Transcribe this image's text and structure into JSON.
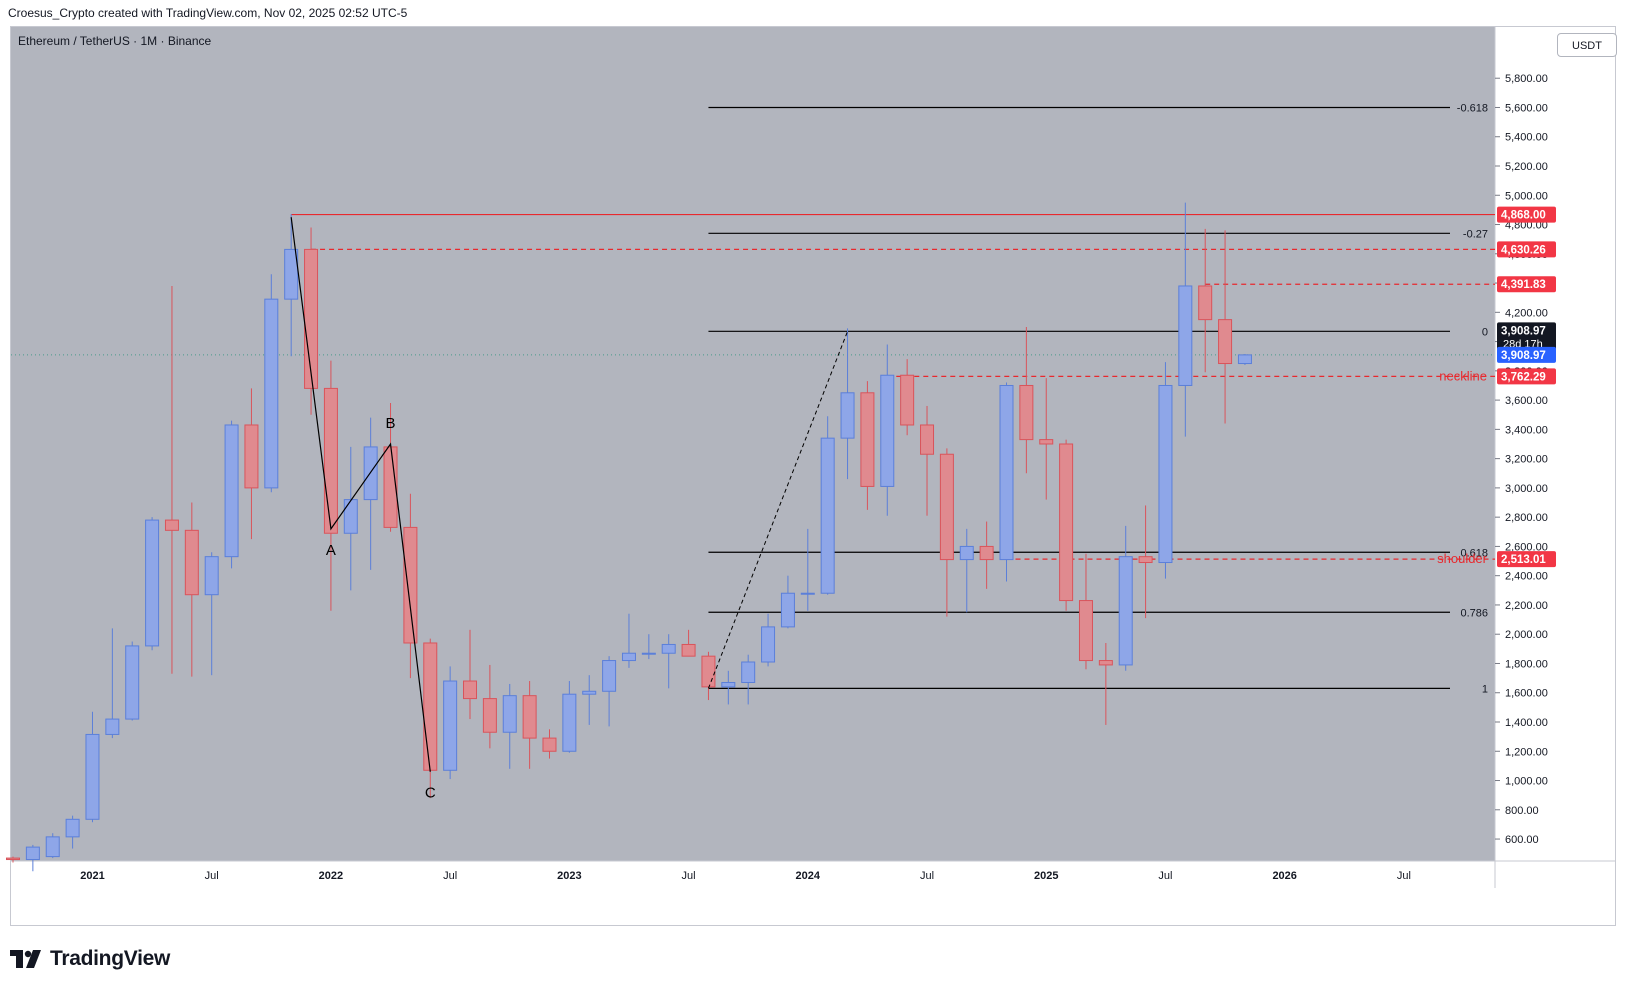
{
  "header": {
    "text": "Croesus_Crypto created with TradingView.com, Nov 02, 2025 02:52 UTC-5"
  },
  "symbol": {
    "text": "Ethereum / TetherUS · 1M · Binance"
  },
  "currency": {
    "label": "USDT"
  },
  "footer": {
    "brand": "TradingView"
  },
  "colors": {
    "background": "#b2b5be",
    "bull": "#5b7fd9",
    "bear": "#d9545b",
    "fib": "#000000",
    "resistance": "#e8292e"
  },
  "chart_data": {
    "type": "candlestick",
    "timeframe": "1M",
    "ylim": [
      450,
      6150
    ],
    "yticks": [
      600,
      800,
      1000,
      1200,
      1400,
      1600,
      1800,
      2000,
      2200,
      2400,
      2600,
      2800,
      3000,
      3200,
      3400,
      3600,
      3800,
      4000,
      4200,
      4400,
      4600,
      4800,
      5000,
      5200,
      5400,
      5600,
      5800
    ],
    "ytick_labels": [
      "600.00",
      "800.00",
      "1,000.00",
      "1,200.00",
      "1,400.00",
      "1,600.00",
      "1,800.00",
      "2,000.00",
      "2,200.00",
      "2,400.00",
      "2,600.00",
      "2,800.00",
      "3,000.00",
      "3,200.00",
      "3,400.00",
      "3,600.00",
      "3,800.00",
      "4,000.00",
      "4,200.00",
      "4,400.00",
      "4,600.00",
      "4,800.00",
      "5,000.00",
      "5,200.00",
      "5,400.00",
      "5,600.00",
      "5,800.00"
    ],
    "xticks": [
      {
        "label": "2021",
        "index": 4,
        "bold": true
      },
      {
        "label": "Jul",
        "index": 10,
        "bold": false
      },
      {
        "label": "2022",
        "index": 16,
        "bold": true
      },
      {
        "label": "Jul",
        "index": 22,
        "bold": false
      },
      {
        "label": "2023",
        "index": 28,
        "bold": true
      },
      {
        "label": "Jul",
        "index": 34,
        "bold": false
      },
      {
        "label": "2024",
        "index": 40,
        "bold": true
      },
      {
        "label": "Jul",
        "index": 46,
        "bold": false
      },
      {
        "label": "2025",
        "index": 52,
        "bold": true
      },
      {
        "label": "Jul",
        "index": 58,
        "bold": false
      },
      {
        "label": "2026",
        "index": 64,
        "bold": true
      },
      {
        "label": "Jul",
        "index": 70,
        "bold": false
      }
    ],
    "candles": [
      {
        "o": 470,
        "h": 480,
        "l": 440,
        "c": 460
      },
      {
        "o": 460,
        "h": 560,
        "l": 380,
        "c": 545
      },
      {
        "o": 480,
        "h": 640,
        "l": 470,
        "c": 615
      },
      {
        "o": 615,
        "h": 760,
        "l": 535,
        "c": 735
      },
      {
        "o": 735,
        "h": 1470,
        "l": 715,
        "c": 1315
      },
      {
        "o": 1315,
        "h": 2040,
        "l": 1290,
        "c": 1420
      },
      {
        "o": 1420,
        "h": 1950,
        "l": 1410,
        "c": 1920
      },
      {
        "o": 1920,
        "h": 2800,
        "l": 1890,
        "c": 2780
      },
      {
        "o": 2780,
        "h": 4380,
        "l": 1730,
        "c": 2710
      },
      {
        "o": 2710,
        "h": 2900,
        "l": 1710,
        "c": 2270
      },
      {
        "o": 2270,
        "h": 2560,
        "l": 1720,
        "c": 2530
      },
      {
        "o": 2530,
        "h": 3460,
        "l": 2450,
        "c": 3430
      },
      {
        "o": 3430,
        "h": 3680,
        "l": 2650,
        "c": 3000
      },
      {
        "o": 3000,
        "h": 4460,
        "l": 2970,
        "c": 4290
      },
      {
        "o": 4290,
        "h": 4870,
        "l": 3900,
        "c": 4630
      },
      {
        "o": 4630,
        "h": 4780,
        "l": 3500,
        "c": 3680
      },
      {
        "o": 3680,
        "h": 3870,
        "l": 2160,
        "c": 2690
      },
      {
        "o": 2690,
        "h": 3280,
        "l": 2300,
        "c": 2920
      },
      {
        "o": 2920,
        "h": 3480,
        "l": 2440,
        "c": 3280
      },
      {
        "o": 3280,
        "h": 3580,
        "l": 2700,
        "c": 2730
      },
      {
        "o": 2730,
        "h": 2960,
        "l": 1700,
        "c": 1940
      },
      {
        "o": 1940,
        "h": 1970,
        "l": 880,
        "c": 1070
      },
      {
        "o": 1070,
        "h": 1780,
        "l": 1010,
        "c": 1680
      },
      {
        "o": 1680,
        "h": 2030,
        "l": 1420,
        "c": 1560
      },
      {
        "o": 1560,
        "h": 1790,
        "l": 1220,
        "c": 1330
      },
      {
        "o": 1330,
        "h": 1660,
        "l": 1080,
        "c": 1580
      },
      {
        "o": 1580,
        "h": 1680,
        "l": 1080,
        "c": 1290
      },
      {
        "o": 1290,
        "h": 1350,
        "l": 1150,
        "c": 1200
      },
      {
        "o": 1200,
        "h": 1680,
        "l": 1190,
        "c": 1590
      },
      {
        "o": 1590,
        "h": 1720,
        "l": 1380,
        "c": 1610
      },
      {
        "o": 1610,
        "h": 1850,
        "l": 1370,
        "c": 1820
      },
      {
        "o": 1820,
        "h": 2140,
        "l": 1770,
        "c": 1870
      },
      {
        "o": 1870,
        "h": 2000,
        "l": 1830,
        "c": 1870
      },
      {
        "o": 1870,
        "h": 2000,
        "l": 1630,
        "c": 1930
      },
      {
        "o": 1930,
        "h": 2030,
        "l": 1850,
        "c": 1850
      },
      {
        "o": 1850,
        "h": 1880,
        "l": 1550,
        "c": 1640
      },
      {
        "o": 1640,
        "h": 1750,
        "l": 1520,
        "c": 1670
      },
      {
        "o": 1670,
        "h": 1860,
        "l": 1520,
        "c": 1810
      },
      {
        "o": 1810,
        "h": 2140,
        "l": 1780,
        "c": 2050
      },
      {
        "o": 2050,
        "h": 2400,
        "l": 2040,
        "c": 2280
      },
      {
        "o": 2280,
        "h": 2720,
        "l": 2160,
        "c": 2280
      },
      {
        "o": 2280,
        "h": 3490,
        "l": 2270,
        "c": 3340
      },
      {
        "o": 3340,
        "h": 4090,
        "l": 3060,
        "c": 3650
      },
      {
        "o": 3650,
        "h": 3730,
        "l": 2850,
        "c": 3010
      },
      {
        "o": 3010,
        "h": 3980,
        "l": 2810,
        "c": 3770
      },
      {
        "o": 3770,
        "h": 3880,
        "l": 3360,
        "c": 3430
      },
      {
        "o": 3430,
        "h": 3560,
        "l": 2810,
        "c": 3230
      },
      {
        "o": 3230,
        "h": 3270,
        "l": 2120,
        "c": 2510
      },
      {
        "o": 2510,
        "h": 2720,
        "l": 2150,
        "c": 2600
      },
      {
        "o": 2600,
        "h": 2770,
        "l": 2310,
        "c": 2510
      },
      {
        "o": 2510,
        "h": 3720,
        "l": 2360,
        "c": 3700
      },
      {
        "o": 3700,
        "h": 4100,
        "l": 3100,
        "c": 3330
      },
      {
        "o": 3330,
        "h": 3750,
        "l": 2920,
        "c": 3300
      },
      {
        "o": 3300,
        "h": 3330,
        "l": 2160,
        "c": 2230
      },
      {
        "o": 2230,
        "h": 2550,
        "l": 1760,
        "c": 1820
      },
      {
        "o": 1820,
        "h": 1940,
        "l": 1380,
        "c": 1790
      },
      {
        "o": 1790,
        "h": 2740,
        "l": 1750,
        "c": 2530
      },
      {
        "o": 2530,
        "h": 2880,
        "l": 2110,
        "c": 2490
      },
      {
        "o": 2490,
        "h": 3860,
        "l": 2380,
        "c": 3700
      },
      {
        "o": 3700,
        "h": 4950,
        "l": 3350,
        "c": 4380
      },
      {
        "o": 4380,
        "h": 4770,
        "l": 3790,
        "c": 4150
      },
      {
        "o": 4150,
        "h": 4760,
        "l": 3440,
        "c": 3850
      },
      {
        "o": 3850,
        "h": 3915,
        "l": 3840,
        "c": 3908.97
      }
    ],
    "fib_levels": [
      {
        "label": "-0.618",
        "value": 5600
      },
      {
        "label": "-0.27",
        "value": 4740
      },
      {
        "label": "0",
        "value": 4070
      },
      {
        "label": "0.618",
        "value": 2560
      },
      {
        "label": "0.786",
        "value": 2150
      },
      {
        "label": "1",
        "value": 1630
      }
    ],
    "horizontal_levels": [
      {
        "value": 4868.0,
        "label": "4,868.00",
        "style": "solid",
        "annotation": ""
      },
      {
        "value": 4630.26,
        "label": "4,630.26",
        "style": "dashed",
        "annotation": ""
      },
      {
        "value": 4391.83,
        "label": "4,391.83",
        "style": "dashed",
        "annotation": ""
      },
      {
        "value": 3762.29,
        "label": "3,762.29",
        "style": "dashed",
        "annotation": "neckline"
      },
      {
        "value": 2513.01,
        "label": "2,513.01",
        "style": "dashed",
        "annotation": "shoulder"
      }
    ],
    "current_price": {
      "value": 3908.97,
      "label": "3,908.97",
      "countdown": "28d 17h",
      "obscured_label": "3,800.00"
    },
    "abc_pattern": [
      {
        "label": "",
        "index": 14,
        "value": 4850
      },
      {
        "label": "A",
        "index": 16,
        "value": 2720
      },
      {
        "label": "B",
        "index": 19,
        "value": 3300
      },
      {
        "label": "C",
        "index": 21,
        "value": 1060
      }
    ],
    "projection_line": [
      {
        "index": 35,
        "value": 1630
      },
      {
        "index": 42,
        "value": 4070
      }
    ]
  }
}
